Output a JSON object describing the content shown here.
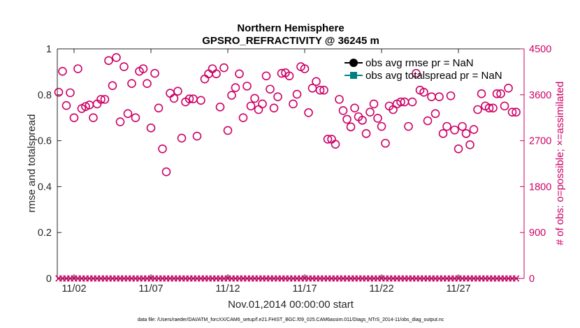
{
  "chart_data": {
    "type": "scatter",
    "title": [
      "Northern Hemisphere",
      "GPSRO_REFRACTIVITY @ 36245 m"
    ],
    "xlabel": "Nov.01,2014 00:00:00 start",
    "x_range": [
      0.91,
      31.27
    ],
    "x_start_day": 1,
    "x_step_days": 0.25,
    "x_ticks": [
      {
        "value": 2,
        "label": "11/02"
      },
      {
        "value": 7,
        "label": "11/07"
      },
      {
        "value": 12,
        "label": "11/12"
      },
      {
        "value": 17,
        "label": "11/17"
      },
      {
        "value": 22,
        "label": "11/22"
      },
      {
        "value": 27,
        "label": "11/27"
      }
    ],
    "y_left": {
      "label": "rmse and totalspread",
      "range": [
        0,
        1
      ],
      "ticks": [
        {
          "value": 0,
          "label": "0"
        },
        {
          "value": 0.2,
          "label": "0.2"
        },
        {
          "value": 0.4,
          "label": "0.4"
        },
        {
          "value": 0.6,
          "label": "0.6"
        },
        {
          "value": 0.8,
          "label": "0.8"
        },
        {
          "value": 1,
          "label": "1"
        }
      ]
    },
    "y_right": {
      "label": "# of obs: o=possible; ×=assimilated",
      "range": [
        0,
        4500
      ],
      "ticks": [
        {
          "value": 0,
          "label": "0"
        },
        {
          "value": 900,
          "label": "900"
        },
        {
          "value": 1800,
          "label": "1800"
        },
        {
          "value": 2700,
          "label": "2700"
        },
        {
          "value": 3600,
          "label": "3600"
        },
        {
          "value": 4500,
          "label": "4500"
        }
      ]
    },
    "legend_position": "top-right",
    "series": [
      {
        "name": "obs avg rmse pr = NaN",
        "color": "#000000",
        "values": null
      },
      {
        "name": "obs avg totalspread pr = NaN",
        "color": "#008080",
        "values": null
      }
    ],
    "obs_counts": {
      "color": "#cc0066",
      "possible": [
        3650,
        4060,
        3390,
        3640,
        3150,
        4110,
        3330,
        3370,
        3400,
        3150,
        3420,
        3510,
        3510,
        4270,
        3780,
        4330,
        3070,
        4150,
        3230,
        3820,
        3150,
        4060,
        4110,
        3820,
        2950,
        4020,
        3340,
        2540,
        2090,
        3630,
        3530,
        3670,
        2750,
        3460,
        3520,
        3520,
        2790,
        3490,
        3910,
        4010,
        4110,
        4010,
        3360,
        4130,
        2900,
        3590,
        3740,
        4010,
        3150,
        3770,
        3380,
        3530,
        3310,
        3420,
        3970,
        3710,
        3340,
        3560,
        4020,
        4030,
        3970,
        3420,
        3610,
        4150,
        4110,
        3250,
        3730,
        3860,
        3690,
        3690,
        2730,
        2730,
        2630,
        3510,
        3290,
        3120,
        2970,
        3340,
        3170,
        3100,
        2840,
        3260,
        3420,
        3140,
        2980,
        2650,
        3380,
        3310,
        3420,
        3460,
        3460,
        2980,
        3460,
        4020,
        3690,
        3650,
        3090,
        3560,
        3230,
        3560,
        2840,
        2980,
        3580,
        2910,
        2540,
        2980,
        2840,
        2620,
        2920,
        3310,
        3620,
        3380,
        3340,
        3340,
        3620,
        3620,
        3380,
        3730,
        3260,
        3260
      ],
      "assimilated": [
        0,
        0,
        0,
        0,
        0,
        0,
        0,
        0,
        0,
        0,
        0,
        0,
        0,
        0,
        0,
        0,
        0,
        0,
        0,
        0,
        0,
        0,
        0,
        0,
        0,
        0,
        0,
        0,
        0,
        0,
        0,
        0,
        0,
        0,
        0,
        0,
        0,
        0,
        0,
        0,
        0,
        0,
        0,
        0,
        0,
        0,
        0,
        0,
        0,
        0,
        0,
        0,
        0,
        0,
        0,
        0,
        0,
        0,
        0,
        0,
        0,
        0,
        0,
        0,
        0,
        0,
        0,
        0,
        0,
        0,
        0,
        0,
        0,
        0,
        0,
        0,
        0,
        0,
        0,
        0,
        0,
        0,
        0,
        0,
        0,
        0,
        0,
        0,
        0,
        0,
        0,
        0,
        0,
        0,
        0,
        0,
        0,
        0,
        0,
        0,
        0,
        0,
        0,
        0,
        0,
        0,
        0,
        0,
        0,
        0,
        0,
        0,
        0,
        0,
        0,
        0,
        0,
        0,
        0,
        0
      ]
    }
  },
  "footer": {
    "data_file": "data file: /Users/raeder/DAI/ATM_forcXX/CAM6_setup/f.e21.FHIST_BGC.f09_025.CAM6assim.011/Diags_NTrS_2014-11/obs_diag_output.nc"
  },
  "colors": {
    "axis": "#262626",
    "background": "#ffffff"
  }
}
